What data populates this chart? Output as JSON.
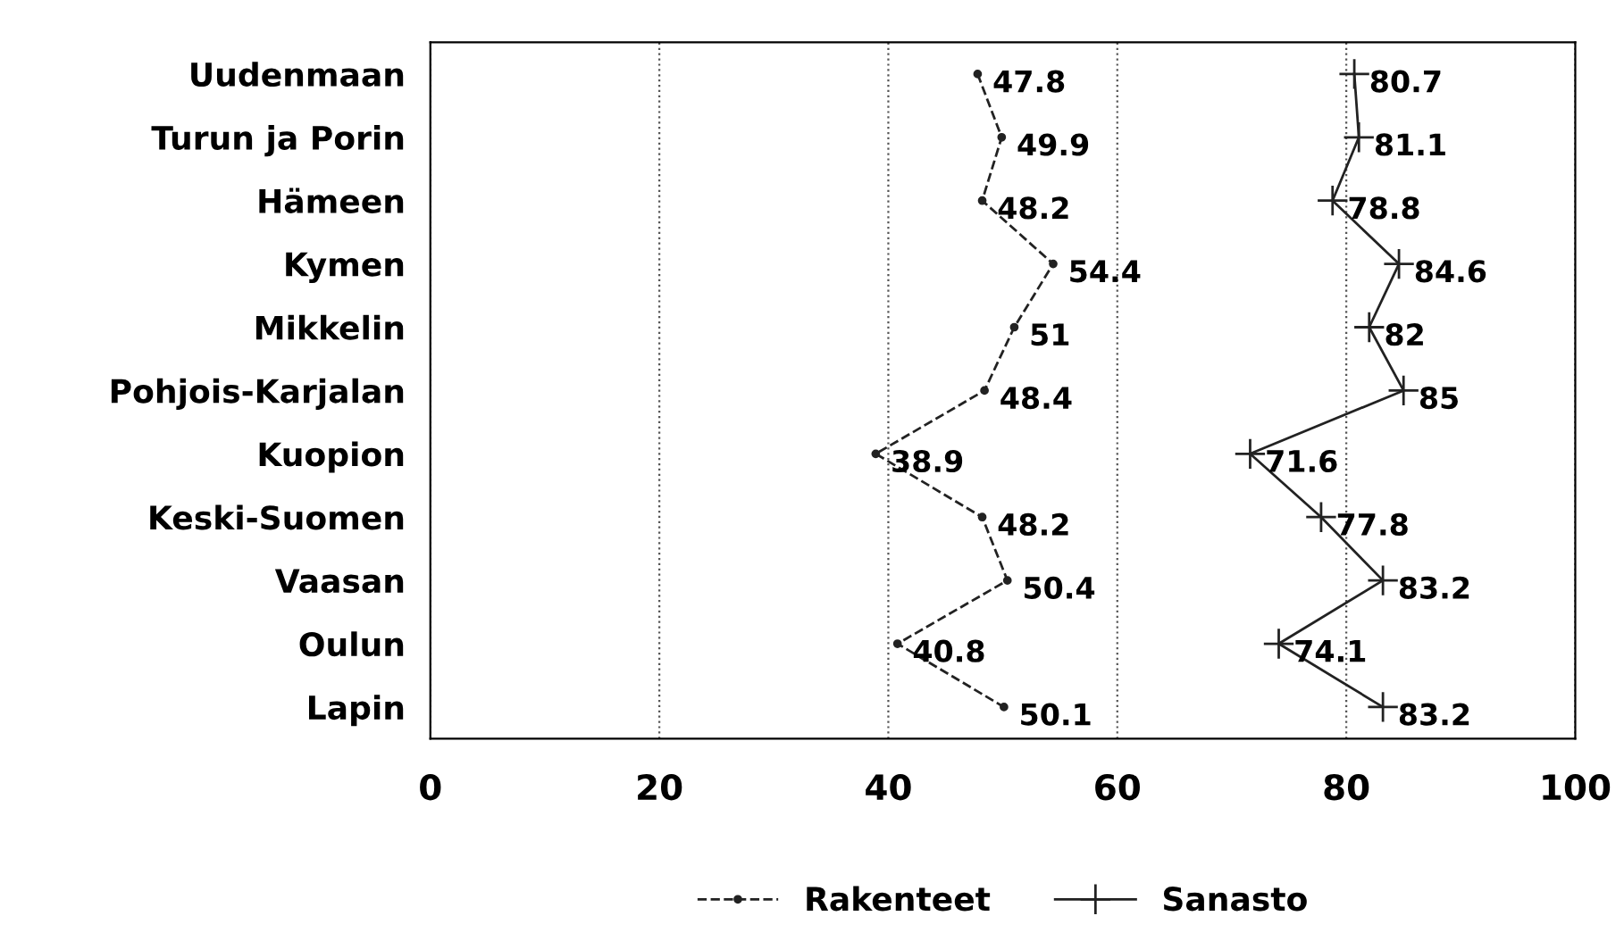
{
  "chart_data": {
    "type": "line",
    "orientation": "horizontal",
    "categories": [
      "Uudenmaan",
      "Turun ja Porin",
      "Hämeen",
      "Kymen",
      "Mikkelin",
      "Pohjois-Karjalan",
      "Kuopion",
      "Keski-Suomen",
      "Vaasan",
      "Oulun",
      "Lapin"
    ],
    "series": [
      {
        "name": "Rakenteet",
        "color": "#222222",
        "marker": "circle",
        "line_style": "dashed",
        "values": [
          47.8,
          49.9,
          48.2,
          54.4,
          51,
          48.4,
          38.9,
          48.2,
          50.4,
          40.8,
          50.1
        ]
      },
      {
        "name": "Sanasto",
        "color": "#222222",
        "marker": "cross",
        "line_style": "solid",
        "values": [
          80.7,
          81.1,
          78.8,
          84.6,
          82,
          85,
          71.6,
          77.8,
          83.2,
          74.1,
          83.2
        ]
      }
    ],
    "xlim": [
      0,
      100
    ],
    "xticks": [
      0,
      20,
      40,
      60,
      80,
      100
    ],
    "grid": "x",
    "legend": "bottom",
    "data_labels": true
  }
}
